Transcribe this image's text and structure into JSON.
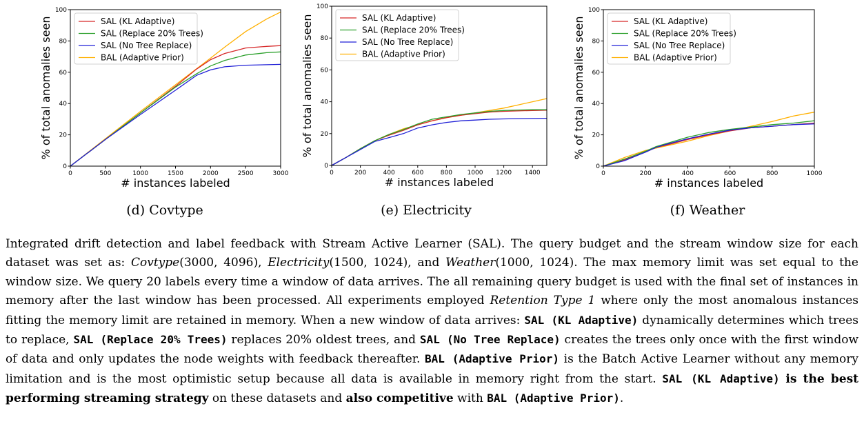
{
  "chart_data": [
    {
      "type": "line",
      "xlabel": "# instances labeled",
      "ylabel": "% of total anomalies seen",
      "xlim": [
        0,
        3000
      ],
      "ylim": [
        0,
        100
      ],
      "xticks": [
        0,
        500,
        1000,
        1500,
        2000,
        2500,
        3000
      ],
      "yticks": [
        0,
        20,
        40,
        60,
        80,
        100
      ],
      "legend_position": "top-left",
      "series": [
        {
          "name": "SAL (KL Adaptive)",
          "color": "#d62728",
          "x": [
            0,
            500,
            1000,
            1500,
            1800,
            2000,
            2200,
            2500,
            2800,
            3000
          ],
          "y": [
            0,
            17,
            34,
            51,
            62,
            68,
            72,
            75.5,
            76.5,
            77
          ]
        },
        {
          "name": "SAL (Replace 20% Trees)",
          "color": "#2ca02c",
          "x": [
            0,
            500,
            1000,
            1500,
            1800,
            2000,
            2200,
            2500,
            2800,
            3000
          ],
          "y": [
            0,
            17,
            34,
            50.5,
            59,
            64,
            67.5,
            71,
            72.5,
            73
          ]
        },
        {
          "name": "SAL (No Tree Replace)",
          "color": "#1f1fd6",
          "x": [
            0,
            500,
            1000,
            1500,
            1800,
            2000,
            2200,
            2500,
            2800,
            3000
          ],
          "y": [
            0,
            17,
            33,
            48.5,
            58,
            61.5,
            63.5,
            64.5,
            64.8,
            65
          ]
        },
        {
          "name": "BAL (Adaptive Prior)",
          "color": "#ffb000",
          "x": [
            0,
            500,
            1000,
            1500,
            2000,
            2200,
            2500,
            2800,
            3000
          ],
          "y": [
            0,
            17.5,
            35,
            52,
            69,
            76,
            86,
            94,
            98.5
          ]
        }
      ]
    },
    {
      "type": "line",
      "xlabel": "# instances labeled",
      "ylabel": "% of total anomalies seen",
      "xlim": [
        0,
        1500
      ],
      "ylim": [
        0,
        100
      ],
      "xticks": [
        0,
        200,
        400,
        600,
        800,
        1000,
        1200,
        1400
      ],
      "yticks": [
        0,
        20,
        40,
        60,
        80,
        100
      ],
      "legend_position": "top-left",
      "series": [
        {
          "name": "SAL (KL Adaptive)",
          "color": "#d62728",
          "x": [
            0,
            100,
            200,
            300,
            400,
            500,
            600,
            700,
            800,
            900,
            1000,
            1100,
            1200,
            1300,
            1400,
            1500
          ],
          "y": [
            0,
            5,
            10.5,
            15.5,
            19,
            22,
            25.5,
            28,
            30,
            31.5,
            32.5,
            33.5,
            34,
            34.3,
            34.5,
            34.7
          ]
        },
        {
          "name": "SAL (Replace 20% Trees)",
          "color": "#2ca02c",
          "x": [
            0,
            100,
            200,
            300,
            400,
            500,
            600,
            700,
            800,
            900,
            1000,
            1100,
            1200,
            1300,
            1400,
            1500
          ],
          "y": [
            0,
            5,
            10.5,
            15.5,
            19.5,
            22.5,
            26,
            29,
            30.5,
            32,
            33,
            34,
            34.5,
            34.8,
            35,
            35
          ]
        },
        {
          "name": "SAL (No Tree Replace)",
          "color": "#1f1fd6",
          "x": [
            0,
            100,
            200,
            300,
            400,
            500,
            600,
            700,
            800,
            900,
            1000,
            1100,
            1200,
            1300,
            1400,
            1500
          ],
          "y": [
            0,
            5,
            10,
            15,
            17.5,
            20,
            23.5,
            25.5,
            27,
            28,
            28.5,
            29,
            29.2,
            29.4,
            29.5,
            29.6
          ]
        },
        {
          "name": "BAL (Adaptive Prior)",
          "color": "#ffb000",
          "x": [
            0,
            100,
            200,
            300,
            400,
            500,
            600,
            700,
            800,
            900,
            1000,
            1100,
            1200,
            1300,
            1400,
            1500
          ],
          "y": [
            0,
            5,
            10.5,
            15.5,
            19.5,
            23,
            25.5,
            28,
            30,
            31.5,
            33,
            34.5,
            36,
            38,
            40,
            42
          ]
        }
      ]
    },
    {
      "type": "line",
      "xlabel": "# instances labeled",
      "ylabel": "% of total anomalies seen",
      "xlim": [
        0,
        1000
      ],
      "ylim": [
        0,
        100
      ],
      "xticks": [
        0,
        200,
        400,
        600,
        800,
        1000
      ],
      "yticks": [
        0,
        20,
        40,
        60,
        80,
        100
      ],
      "legend_position": "top-left",
      "series": [
        {
          "name": "SAL (KL Adaptive)",
          "color": "#d62728",
          "x": [
            0,
            100,
            200,
            250,
            300,
            400,
            500,
            600,
            700,
            800,
            900,
            1000
          ],
          "y": [
            0,
            4,
            9,
            12,
            13.5,
            17,
            20,
            22.5,
            24.5,
            25.5,
            26.5,
            27.5
          ]
        },
        {
          "name": "SAL (Replace 20% Trees)",
          "color": "#2ca02c",
          "x": [
            0,
            100,
            200,
            250,
            300,
            400,
            500,
            600,
            700,
            800,
            900,
            1000
          ],
          "y": [
            0,
            4.5,
            9.5,
            12.5,
            14.5,
            18.5,
            21.5,
            23.5,
            25,
            26.5,
            27.5,
            29
          ]
        },
        {
          "name": "SAL (No Tree Replace)",
          "color": "#1f1fd6",
          "x": [
            0,
            100,
            200,
            250,
            300,
            400,
            500,
            600,
            700,
            800,
            900,
            1000
          ],
          "y": [
            0,
            3.5,
            9,
            12,
            14,
            17.5,
            20.5,
            23,
            24.5,
            25.5,
            26.5,
            27
          ]
        },
        {
          "name": "BAL (Adaptive Prior)",
          "color": "#ffb000",
          "x": [
            0,
            100,
            200,
            250,
            300,
            400,
            500,
            600,
            700,
            800,
            900,
            1000
          ],
          "y": [
            0,
            5.5,
            10,
            11.5,
            13,
            16,
            19.5,
            22.5,
            25.5,
            28.5,
            32,
            34.5
          ]
        }
      ]
    }
  ],
  "subcaptions": [
    "(d) Covtype",
    "(e) Electricity",
    "(f) Weather"
  ],
  "caption": {
    "s1": "Integrated drift detection and label feedback with Stream Active Learner (SAL). The query budget and the stream window size for each dataset was set as: ",
    "ds1": "Covtype",
    "ds1args": "(3000, 4096), ",
    "ds2": "Electricity",
    "ds2args": "(1500, 1024), and ",
    "ds3": "Weather",
    "ds3args": "(1000, 1024).",
    "s2": " The max memory limit was set equal to the window size. We query 20 labels every time a window of data arrives. The all remaining query budget is used with the final set of instances in memory after the last window has been processed. All experiments employed ",
    "ret": "Retention Type 1",
    "s3": " where only the most anomalous instances fitting the memory limit are retained in memory. When a new window of data arrives: ",
    "m1": "SAL (KL Adaptive)",
    "s4": " dynamically determines which trees to replace, ",
    "m2": "SAL (Replace 20% Trees)",
    "s5": " replaces 20% oldest trees, and ",
    "m3": "SAL (No Tree Replace)",
    "s6": " creates the trees only once with the first window of data and only updates the node weights with feedback thereafter. ",
    "m4": "BAL (Adaptive Prior)",
    "s7": " is the Batch Active Learner without any memory limitation and is the most optimistic setup because all data is available in memory right from the start. ",
    "m5": "SAL (KL Adaptive)",
    "b1": "is the best performing streaming strategy",
    "s8": " on these datasets and ",
    "b2": "also competitive",
    "s9": " with ",
    "m6": "BAL (Adaptive Prior)",
    "s10": "."
  }
}
